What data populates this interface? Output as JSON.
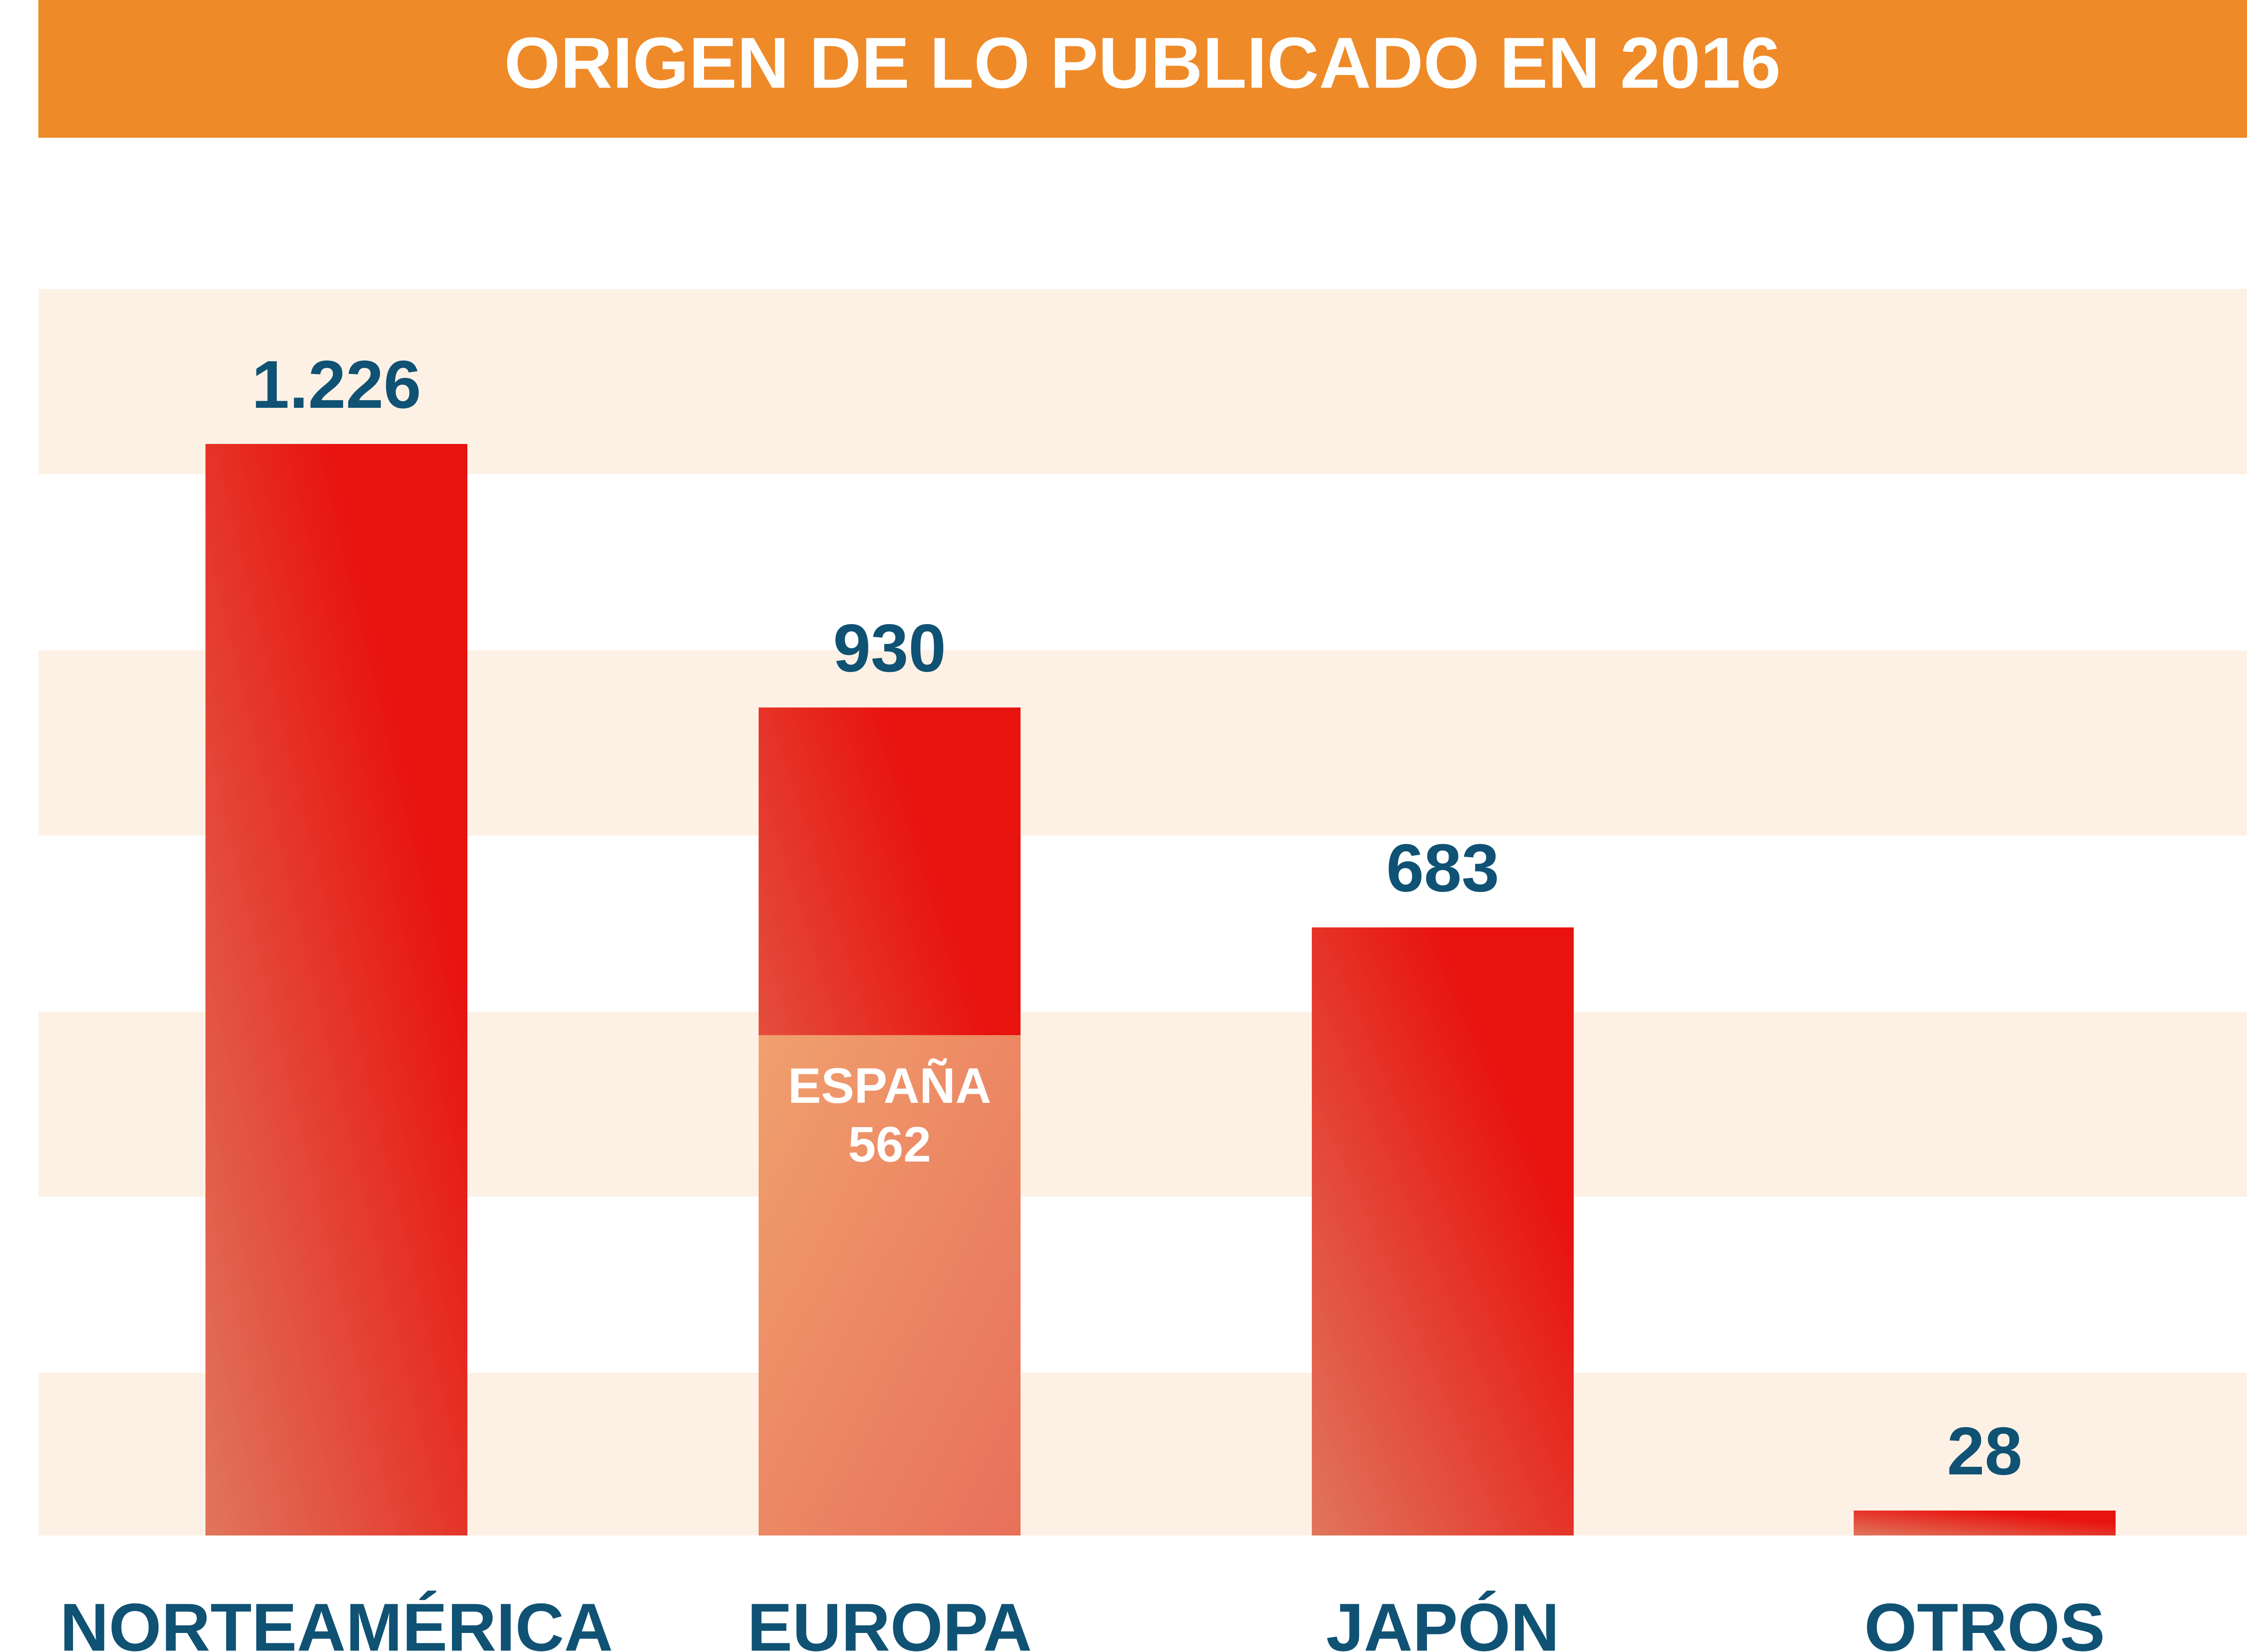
{
  "chart_data": {
    "type": "bar",
    "title": "ORIGEN DE LO PUBLICADO EN 2016",
    "categories": [
      "NORTEAMÉRICA",
      "EUROPA",
      "JAPÓN",
      "OTROS"
    ],
    "values": [
      1226,
      930,
      683,
      28
    ],
    "value_labels": [
      "1.226",
      "930",
      "683",
      "28"
    ],
    "sub_segment": {
      "category": "EUROPA",
      "name": "ESPAÑA",
      "value": 562,
      "value_label": "562"
    },
    "ylim": [
      0,
      1400
    ],
    "grid": "alternating horizontal bands",
    "legend": "none"
  },
  "colors": {
    "banner": "#ef8a28",
    "band": "#fdf1e5",
    "bar_dark": "#e8120f",
    "bar_light": "#e0765c",
    "sub_light": "#f0a06e",
    "sub_dark": "#e8705a",
    "value_text": "#0f5274"
  }
}
